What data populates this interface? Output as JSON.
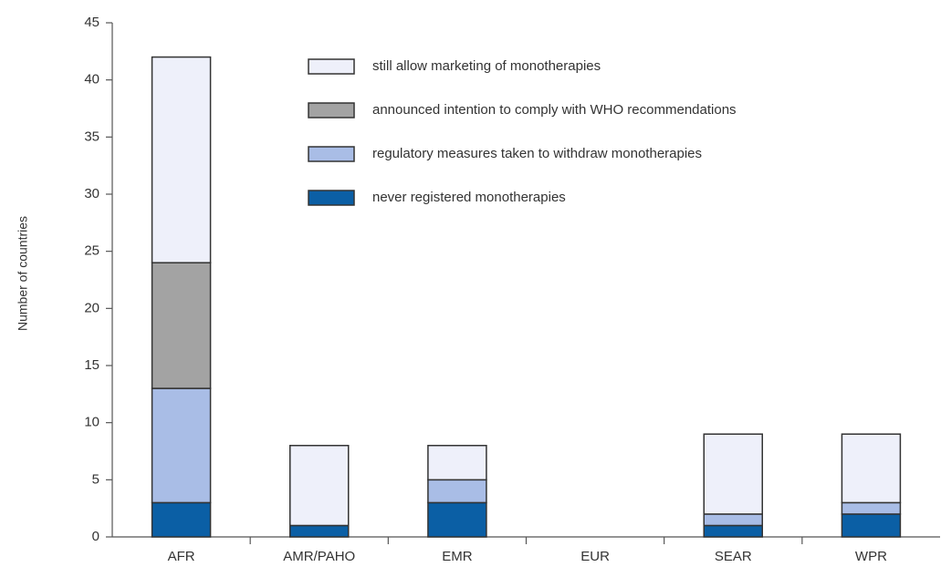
{
  "chart_data": {
    "type": "stacked_bar",
    "y_label": "Number of countries",
    "categories": [
      "AFR",
      "AMR/PAHO",
      "EMR",
      "EUR",
      "SEAR",
      "WPR"
    ],
    "series": [
      {
        "name": "never registered monotherapies",
        "color": "#0b5fa5",
        "values": [
          3,
          1,
          3,
          0,
          1,
          2
        ]
      },
      {
        "name": "regulatory measures taken to withdraw monotherapies",
        "color": "#a9bde6",
        "values": [
          10,
          0,
          2,
          0,
          1,
          1
        ]
      },
      {
        "name": "announced intention to comply with WHO recommendations",
        "color": "#a3a3a3",
        "values": [
          11,
          0,
          0,
          0,
          0,
          0
        ]
      },
      {
        "name": "still allow marketing of monotherapies",
        "color": "#eef0fa",
        "values": [
          18,
          7,
          3,
          0,
          7,
          6
        ]
      }
    ],
    "ylim": [
      0,
      45
    ],
    "yticks": [
      0,
      5,
      10,
      15,
      20,
      25,
      30,
      35,
      40,
      45
    ]
  }
}
